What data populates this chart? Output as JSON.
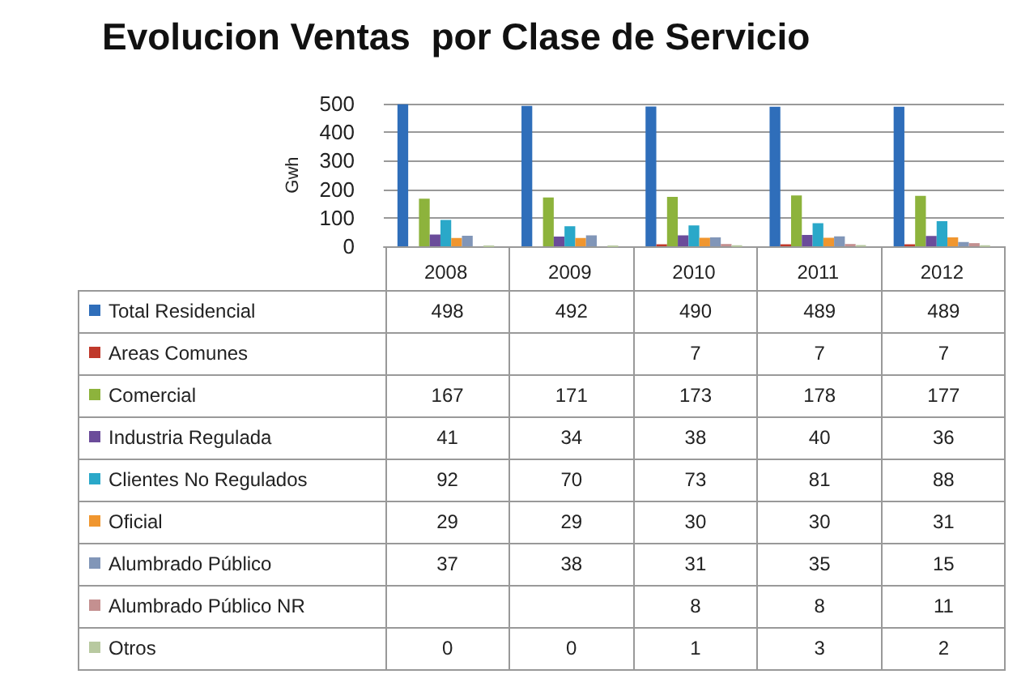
{
  "chart_data": {
    "type": "bar",
    "title": "Evolucion Ventas  por Clase de Servicio",
    "ylabel": "Gwh",
    "categories": [
      "2008",
      "2009",
      "2010",
      "2011",
      "2012"
    ],
    "series": [
      {
        "name": "Total Residencial",
        "color": "#2f6eba",
        "values": [
          498,
          492,
          490,
          489,
          489
        ]
      },
      {
        "name": "Areas Comunes",
        "color": "#c0392b",
        "values": [
          null,
          null,
          7,
          7,
          7
        ]
      },
      {
        "name": "Comercial",
        "color": "#8db33c",
        "values": [
          167,
          171,
          173,
          178,
          177
        ]
      },
      {
        "name": "Industria Regulada",
        "color": "#6b4c9a",
        "values": [
          41,
          34,
          38,
          40,
          36
        ]
      },
      {
        "name": "Clientes No Regulados",
        "color": "#2aa8c9",
        "values": [
          92,
          70,
          73,
          81,
          88
        ]
      },
      {
        "name": "Oficial",
        "color": "#f0962f",
        "values": [
          29,
          29,
          30,
          30,
          31
        ]
      },
      {
        "name": "Alumbrado Público",
        "color": "#8196b8",
        "values": [
          37,
          38,
          31,
          35,
          15
        ]
      },
      {
        "name": "Alumbrado Público NR",
        "color": "#c49090",
        "values": [
          null,
          null,
          8,
          8,
          11
        ]
      },
      {
        "name": "Otros",
        "color": "#b8c9a0",
        "values": [
          0,
          0,
          1,
          3,
          2
        ]
      }
    ],
    "ylim": [
      0,
      500
    ],
    "yticks": [
      0,
      100,
      200,
      300,
      400,
      500
    ],
    "grid": "y",
    "legend": "bottom left",
    "data_labels": true
  }
}
